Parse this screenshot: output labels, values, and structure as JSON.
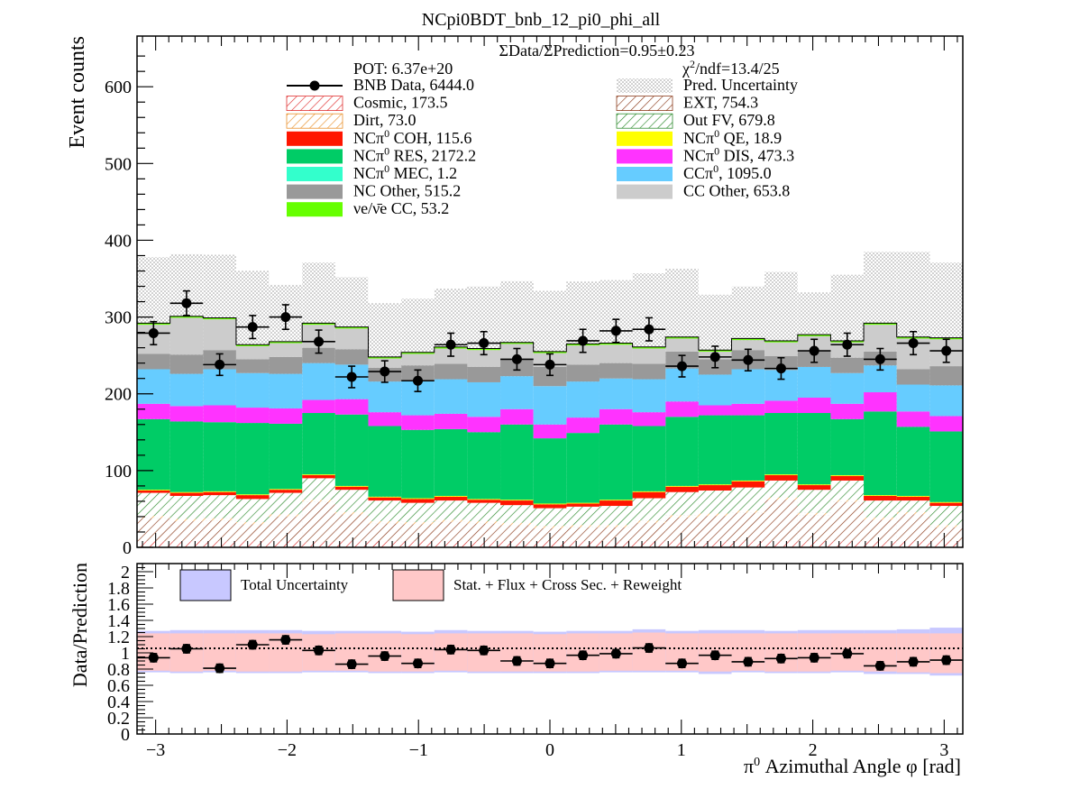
{
  "chart_data": [
    {
      "type": "stacked-histogram",
      "title": "NCpi0BDT_bnb_12_pi0_phi_all",
      "ylabel": "Event counts",
      "ylim": [
        0,
        666
      ],
      "yticks": [
        "0",
        "100",
        "200",
        "300",
        "400",
        "500",
        "600"
      ],
      "ratio_text": "ΣData/ΣPrediction=0.95±0.23",
      "pot_text": "POT: 6.37e+20",
      "chi2_text": "χ2/ndf=13.4/25",
      "x_edges": [
        -3.1416,
        -2.8903,
        -2.6389,
        -2.3876,
        -2.1363,
        -1.885,
        -1.6336,
        -1.3823,
        -1.131,
        -0.8796,
        -0.6283,
        -0.377,
        -0.1257,
        0.1257,
        0.377,
        0.6283,
        0.8796,
        1.131,
        1.3823,
        1.6336,
        1.885,
        2.1363,
        2.3876,
        2.6389,
        2.8903,
        3.1416
      ],
      "legend": [
        {
          "label": "BNB Data, 6444.0",
          "style": "data",
          "color": "#000000"
        },
        {
          "label": "Pred. Uncertainty",
          "style": "dots",
          "color": "#a0a0a0"
        },
        {
          "label": "Cosmic, 173.5",
          "style": "hatch",
          "color": "#e03030"
        },
        {
          "label": "EXT, 754.3",
          "style": "hatch",
          "color": "#8b3a1a"
        },
        {
          "label": "Dirt, 73.0",
          "style": "hatch",
          "color": "#e8902a"
        },
        {
          "label": "Out FV, 679.8",
          "style": "hatch",
          "color": "#2e8b2e"
        },
        {
          "label": "NCπ0 COH,  115.6",
          "style": "fill",
          "color": "#ff1500"
        },
        {
          "label": "NCπ0 QE,  18.9",
          "style": "fill",
          "color": "#ffff00"
        },
        {
          "label": "NCπ0 RES,  2172.2",
          "style": "fill",
          "color": "#00cc66"
        },
        {
          "label": "NCπ0 DIS,  473.3",
          "style": "fill",
          "color": "#ff33ff"
        },
        {
          "label": "NCπ0 MEC,  1.2",
          "style": "fill",
          "color": "#33ffcc"
        },
        {
          "label": "CCπ0, 1095.0",
          "style": "fill",
          "color": "#66ccff"
        },
        {
          "label": "NC Other, 515.2",
          "style": "fill",
          "color": "#999999"
        },
        {
          "label": "CC Other, 653.8",
          "style": "fill",
          "color": "#cccccc"
        },
        {
          "label": "νe/ν̄e CC, 53.2",
          "style": "fill",
          "color": "#66ff00"
        }
      ],
      "stack": [
        {
          "name": "Cosmic",
          "color": "#e03030",
          "style": "hatch",
          "values": [
            8,
            8,
            8,
            8,
            8,
            7,
            8,
            8,
            8,
            8,
            8,
            8,
            8,
            8,
            8,
            8,
            8,
            8,
            8,
            8,
            8,
            8,
            8,
            8,
            8
          ]
        },
        {
          "name": "EXT",
          "color": "#8b3a1a",
          "style": "hatch",
          "values": [
            30,
            26,
            27,
            22,
            32,
            52,
            35,
            23,
            22,
            25,
            23,
            21,
            17,
            18,
            18,
            24,
            31,
            33,
            37,
            54,
            34,
            51,
            28,
            35,
            18
          ]
        },
        {
          "name": "Dirt",
          "color": "#e8902a",
          "style": "hatch",
          "values": [
            3,
            3,
            3,
            3,
            3,
            3,
            3,
            3,
            3,
            3,
            3,
            3,
            3,
            3,
            3,
            3,
            3,
            3,
            3,
            3,
            3,
            3,
            3,
            3,
            3
          ]
        },
        {
          "name": "Out FV",
          "color": "#2e8b2e",
          "style": "hatch",
          "values": [
            30,
            30,
            30,
            30,
            28,
            28,
            29,
            27,
            25,
            25,
            24,
            23,
            23,
            24,
            25,
            29,
            30,
            30,
            30,
            22,
            30,
            25,
            22,
            15,
            25
          ]
        },
        {
          "name": "NCπ0 COH",
          "color": "#ff1500",
          "style": "fill",
          "values": [
            3,
            4,
            4,
            5,
            4,
            4,
            4,
            4,
            5,
            5,
            4,
            6,
            5,
            4,
            7,
            8,
            7,
            7,
            8,
            7,
            6,
            6,
            6,
            5,
            4
          ]
        },
        {
          "name": "NCπ0 QE",
          "color": "#ffff00",
          "style": "fill",
          "values": [
            1,
            1,
            1,
            1,
            1,
            1,
            1,
            1,
            1,
            1,
            1,
            1,
            1,
            1,
            1,
            1,
            1,
            1,
            1,
            1,
            1,
            1,
            1,
            1,
            1
          ]
        },
        {
          "name": "NCπ0 RES",
          "color": "#00cc66",
          "style": "fill",
          "values": [
            92,
            92,
            90,
            93,
            85,
            80,
            93,
            92,
            89,
            87,
            87,
            98,
            85,
            91,
            98,
            85,
            90,
            90,
            85,
            80,
            93,
            73,
            109,
            90,
            92
          ]
        },
        {
          "name": "NCπ0 DIS",
          "color": "#ff33ff",
          "style": "fill",
          "values": [
            20,
            20,
            22,
            20,
            20,
            17,
            20,
            18,
            19,
            20,
            20,
            20,
            18,
            20,
            20,
            18,
            20,
            13,
            15,
            16,
            20,
            20,
            25,
            20,
            20
          ]
        },
        {
          "name": "NCπ0 MEC",
          "color": "#33ffcc",
          "style": "fill",
          "values": [
            0,
            0,
            0,
            0,
            0,
            0,
            0,
            0,
            0,
            0,
            0,
            0,
            0,
            0,
            0,
            0,
            0,
            0,
            0,
            0,
            0,
            0,
            0,
            0,
            0
          ]
        },
        {
          "name": "CCπ0",
          "color": "#66ccff",
          "style": "fill",
          "values": [
            45,
            42,
            47,
            45,
            45,
            48,
            45,
            40,
            45,
            45,
            45,
            43,
            50,
            47,
            40,
            43,
            43,
            40,
            45,
            40,
            40,
            40,
            35,
            35,
            40
          ]
        },
        {
          "name": "NC Other",
          "color": "#999999",
          "style": "fill",
          "values": [
            20,
            25,
            25,
            18,
            22,
            20,
            20,
            18,
            20,
            20,
            20,
            22,
            25,
            22,
            20,
            20,
            22,
            20,
            25,
            18,
            20,
            20,
            18,
            20,
            25
          ]
        },
        {
          "name": "CC Other",
          "color": "#cccccc",
          "style": "fill",
          "values": [
            38,
            48,
            40,
            17,
            18,
            30,
            27,
            12,
            15,
            20,
            22,
            20,
            18,
            25,
            24,
            20,
            17,
            10,
            13,
            18,
            20,
            20,
            35,
            40,
            35
          ]
        },
        {
          "name": "νe/ν̄e CC",
          "color": "#66ff00",
          "style": "fill",
          "values": [
            2,
            2,
            2,
            2,
            2,
            2,
            2,
            2,
            2,
            2,
            2,
            2,
            2,
            2,
            2,
            2,
            2,
            2,
            2,
            2,
            2,
            2,
            2,
            2,
            2
          ]
        }
      ],
      "uncertainty_top": [
        378,
        382,
        381,
        360,
        342,
        371,
        352,
        318,
        324,
        337,
        340,
        347,
        334,
        346,
        348,
        357,
        363,
        329,
        340,
        359,
        332,
        355,
        385,
        385,
        371
      ],
      "data": {
        "x": [
          -3.016,
          -2.765,
          -2.513,
          -2.262,
          -2.011,
          -1.759,
          -1.508,
          -1.257,
          -1.005,
          -0.754,
          -0.503,
          -0.251,
          0.0,
          0.251,
          0.503,
          0.754,
          1.005,
          1.257,
          1.508,
          1.759,
          2.011,
          2.262,
          2.513,
          2.765,
          3.016
        ],
        "y": [
          279,
          318,
          238,
          287,
          300,
          268,
          222,
          229,
          217,
          264,
          266,
          245,
          238,
          269,
          282,
          284,
          236,
          248,
          244,
          233,
          256,
          264,
          245,
          266,
          256
        ],
        "yerr": [
          15,
          16,
          14,
          15,
          16,
          15,
          14,
          14,
          14,
          15,
          15,
          14,
          14,
          15,
          15,
          15,
          14,
          14,
          14,
          14,
          15,
          15,
          14,
          15,
          15
        ]
      }
    },
    {
      "type": "ratio",
      "ylabel": "Data/Prediction",
      "xlabel": "π0 Azimuthal Angle φ [rad]",
      "ylim": [
        0,
        2.1
      ],
      "yticks": [
        "0",
        "0.2",
        "0.4",
        "0.6",
        "0.8",
        "1",
        "1.2",
        "1.4",
        "1.6",
        "1.8",
        "2"
      ],
      "xticks": [
        "−3",
        "−2",
        "−1",
        "0",
        "1",
        "2",
        "3"
      ],
      "legend": [
        {
          "label": "Total Uncertainty",
          "color": "#c8c8ff"
        },
        {
          "label": "Stat. + Flux + Cross Sec. + Reweight",
          "color": "#ffc8c8"
        }
      ],
      "band_total": [
        [
          0.76,
          1.27
        ],
        [
          0.75,
          1.28
        ],
        [
          0.76,
          1.28
        ],
        [
          0.75,
          1.28
        ],
        [
          0.75,
          1.28
        ],
        [
          0.76,
          1.27
        ],
        [
          0.76,
          1.27
        ],
        [
          0.75,
          1.27
        ],
        [
          0.75,
          1.26
        ],
        [
          0.76,
          1.28
        ],
        [
          0.75,
          1.27
        ],
        [
          0.75,
          1.27
        ],
        [
          0.75,
          1.26
        ],
        [
          0.75,
          1.27
        ],
        [
          0.76,
          1.27
        ],
        [
          0.76,
          1.29
        ],
        [
          0.76,
          1.27
        ],
        [
          0.74,
          1.28
        ],
        [
          0.76,
          1.28
        ],
        [
          0.75,
          1.27
        ],
        [
          0.75,
          1.28
        ],
        [
          0.76,
          1.28
        ],
        [
          0.74,
          1.28
        ],
        [
          0.74,
          1.29
        ],
        [
          0.72,
          1.31
        ]
      ],
      "band_stat": [
        [
          0.78,
          1.24
        ],
        [
          0.77,
          1.24
        ],
        [
          0.78,
          1.24
        ],
        [
          0.77,
          1.24
        ],
        [
          0.77,
          1.24
        ],
        [
          0.78,
          1.23
        ],
        [
          0.78,
          1.24
        ],
        [
          0.77,
          1.24
        ],
        [
          0.77,
          1.23
        ],
        [
          0.78,
          1.24
        ],
        [
          0.77,
          1.24
        ],
        [
          0.77,
          1.24
        ],
        [
          0.77,
          1.23
        ],
        [
          0.77,
          1.24
        ],
        [
          0.78,
          1.24
        ],
        [
          0.78,
          1.25
        ],
        [
          0.78,
          1.24
        ],
        [
          0.77,
          1.24
        ],
        [
          0.78,
          1.24
        ],
        [
          0.77,
          1.24
        ],
        [
          0.77,
          1.24
        ],
        [
          0.78,
          1.24
        ],
        [
          0.77,
          1.24
        ],
        [
          0.76,
          1.24
        ],
        [
          0.75,
          1.24
        ]
      ],
      "data": {
        "x": [
          -3.016,
          -2.765,
          -2.513,
          -2.262,
          -2.011,
          -1.759,
          -1.508,
          -1.257,
          -1.005,
          -0.754,
          -0.503,
          -0.251,
          0.0,
          0.251,
          0.503,
          0.754,
          1.005,
          1.257,
          1.508,
          1.759,
          2.011,
          2.262,
          2.513,
          2.765,
          3.016
        ],
        "y": [
          0.94,
          1.05,
          0.81,
          1.1,
          1.16,
          1.03,
          0.86,
          0.96,
          0.87,
          1.04,
          1.03,
          0.9,
          0.87,
          0.97,
          0.99,
          1.06,
          0.87,
          0.97,
          0.89,
          0.93,
          0.94,
          0.99,
          0.84,
          0.89,
          0.91
        ],
        "yerr": [
          0.05,
          0.05,
          0.05,
          0.05,
          0.05,
          0.05,
          0.05,
          0.05,
          0.05,
          0.05,
          0.05,
          0.05,
          0.05,
          0.05,
          0.05,
          0.05,
          0.05,
          0.05,
          0.05,
          0.05,
          0.05,
          0.05,
          0.05,
          0.05,
          0.05
        ]
      }
    }
  ]
}
